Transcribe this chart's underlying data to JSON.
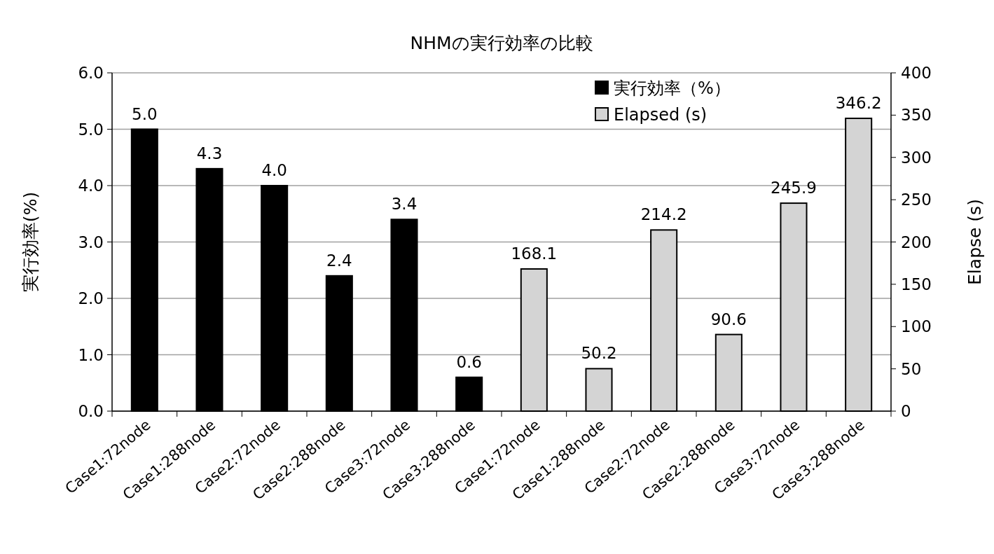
{
  "chart_data": {
    "type": "bar",
    "title": "NHMの実行効率の比較",
    "ylabel": "実行効率(%)",
    "y2label": "Elapse (s)",
    "categories": [
      "Case1:72node",
      "Case1:288node",
      "Case2:72node",
      "Case2:288node",
      "Case3:72node",
      "Case3:288node",
      "Case1:72node",
      "Case1:288node",
      "Case2:72node",
      "Case2:288node",
      "Case3:72node",
      "Case3:288node"
    ],
    "series": [
      {
        "name": "実行効率（%）",
        "color": "#000000",
        "values": [
          5.0,
          4.3,
          4.0,
          2.4,
          3.4,
          0.6,
          null,
          null,
          null,
          null,
          null,
          null
        ],
        "value_labels": [
          "5.0",
          "4.3",
          "4.0",
          "2.4",
          "3.4",
          "0.6",
          null,
          null,
          null,
          null,
          null,
          null
        ]
      },
      {
        "name": "Elapsed (s)",
        "color": "#d4d4d4",
        "axis": "y2",
        "values": [
          null,
          null,
          null,
          null,
          null,
          null,
          168.1,
          50.2,
          214.2,
          90.6,
          245.9,
          346.2
        ],
        "value_labels": [
          null,
          null,
          null,
          null,
          null,
          null,
          "168.1",
          "50.2",
          "214.2",
          "90.6",
          "245.9",
          "346.2"
        ]
      }
    ],
    "ylim": [
      0,
      6
    ],
    "yticks": [
      {
        "value": 0,
        "label": "0.0"
      },
      {
        "value": 1,
        "label": "1.0"
      },
      {
        "value": 2,
        "label": "2.0"
      },
      {
        "value": 3,
        "label": "3.0"
      },
      {
        "value": 4,
        "label": "4.0"
      },
      {
        "value": 5,
        "label": "5.0"
      },
      {
        "value": 6,
        "label": "6.0"
      }
    ],
    "y2lim": [
      0,
      400
    ],
    "y2ticks": [
      0,
      50,
      100,
      150,
      200,
      250,
      300,
      350,
      400
    ],
    "grid": "y",
    "legend": "top right"
  }
}
